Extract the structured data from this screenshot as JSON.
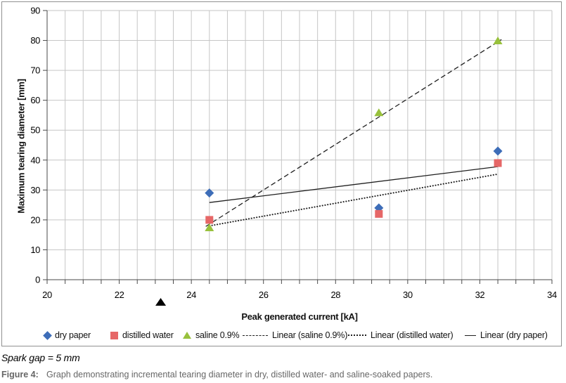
{
  "chart_data": {
    "type": "scatter",
    "title": "",
    "xlabel": "Peak generated current [kA]",
    "ylabel": "Maximum tearing diameter [mm]",
    "xlim": [
      20,
      34
    ],
    "ylim": [
      0,
      90
    ],
    "x_ticks": [
      20,
      22,
      24,
      26,
      28,
      30,
      32,
      34
    ],
    "y_ticks": [
      0,
      10,
      20,
      30,
      40,
      50,
      60,
      70,
      80,
      90
    ],
    "x_minor_grid_step": 0.5,
    "grid": true,
    "legend_position": "bottom",
    "series": [
      {
        "name": "dry paper",
        "marker": "diamond",
        "color": "#3d6db8",
        "x": [
          24.5,
          29.2,
          32.5
        ],
        "y": [
          29,
          24,
          43
        ]
      },
      {
        "name": "distilled water",
        "marker": "square",
        "color": "#e66767",
        "x": [
          24.5,
          29.2,
          32.5
        ],
        "y": [
          20,
          22,
          39
        ]
      },
      {
        "name": "saline 0.9%",
        "marker": "triangle",
        "color": "#98c13c",
        "x": [
          24.5,
          29.2,
          32.5
        ],
        "y": [
          17.5,
          56,
          80
        ]
      }
    ],
    "trend_lines": [
      {
        "name": "Linear (saline 0.9%)",
        "style": "dashed",
        "color": "#1f1f1f",
        "x1": 24.4,
        "y1": 17.8,
        "x2": 32.6,
        "y2": 80.3
      },
      {
        "name": "Linear (distilled water)",
        "style": "dotted",
        "color": "#1f1f1f",
        "x1": 24.5,
        "y1": 18.0,
        "x2": 32.5,
        "y2": 35.3
      },
      {
        "name": "Linear (dry paper)",
        "style": "solid",
        "color": "#1f1f1f",
        "x1": 24.5,
        "y1": 25.8,
        "x2": 32.5,
        "y2": 37.8
      }
    ],
    "annotations": [
      {
        "shape": "filled-up-triangle",
        "color": "#000000",
        "x": 23.15,
        "position": "below-x-axis"
      }
    ]
  },
  "legend": {
    "items": [
      {
        "label": "dry paper",
        "marker": "diamond"
      },
      {
        "label": "distilled water",
        "marker": "square"
      },
      {
        "label": "saline 0.9%",
        "marker": "triangle"
      },
      {
        "label": "Linear (saline 0.9%)",
        "marker": "dashed-line"
      },
      {
        "label": "Linear (distilled water)",
        "marker": "dotted-line"
      },
      {
        "label": "Linear (dry paper)",
        "marker": "solid-line"
      }
    ]
  },
  "notes": {
    "spark_gap": "Spark gap = 5 mm"
  },
  "caption": {
    "label": "Figure 4:",
    "text": "Graph demonstrating incremental tearing diameter in dry, distilled water- and saline-soaked papers."
  },
  "colors": {
    "dry_paper": "#3d6db8",
    "distilled_water": "#e66767",
    "saline": "#98c13c",
    "gridline": "#c6c6c6",
    "axis": "#4a4a4a",
    "trend_line": "#1f1f1f",
    "caption_text": "#666666",
    "frame_border": "#909090"
  }
}
